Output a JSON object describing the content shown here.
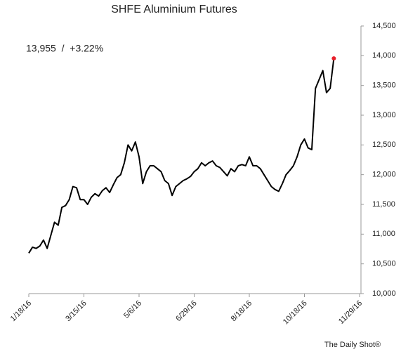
{
  "chart_data": {
    "type": "line",
    "title": "SHFE Aluminium Futures",
    "annotation": "13,955  /  +3.22%",
    "source": "The Daily Shot®",
    "categories": [
      "1/18/16",
      null,
      null,
      null,
      null,
      null,
      null,
      null,
      null,
      null,
      null,
      null,
      null,
      null,
      null,
      "3/15/16",
      null,
      null,
      null,
      null,
      null,
      null,
      null,
      null,
      null,
      null,
      null,
      null,
      null,
      null,
      "5/6/16",
      null,
      null,
      null,
      null,
      null,
      null,
      null,
      null,
      null,
      null,
      null,
      null,
      null,
      null,
      "6/29/16",
      null,
      null,
      null,
      null,
      null,
      null,
      null,
      null,
      null,
      null,
      null,
      null,
      null,
      null,
      "8/18/16",
      null,
      null,
      null,
      null,
      null,
      null,
      null,
      null,
      null,
      null,
      null,
      null,
      null,
      null,
      "10/18/16",
      null,
      null,
      null,
      null,
      null,
      null,
      null,
      null,
      null,
      null,
      null,
      null,
      null,
      null,
      "11/29/16"
    ],
    "values": [
      10680,
      10780,
      10760,
      10800,
      10900,
      10760,
      10980,
      11200,
      11150,
      11450,
      11480,
      11580,
      11800,
      11780,
      11580,
      11580,
      11500,
      11620,
      11680,
      11640,
      11730,
      11780,
      11700,
      11830,
      11950,
      12000,
      12200,
      12500,
      12400,
      12550,
      12300,
      11850,
      12050,
      12150,
      12150,
      12100,
      12050,
      11900,
      11850,
      11650,
      11800,
      11850,
      11900,
      11930,
      11970,
      12050,
      12100,
      12200,
      12150,
      12200,
      12230,
      12150,
      12120,
      12050,
      11980,
      12100,
      12050,
      12150,
      12170,
      12150,
      12300,
      12150,
      12150,
      12100,
      12000,
      11900,
      11800,
      11750,
      11720,
      11850,
      12000,
      12070,
      12150,
      12300,
      12500,
      12600,
      12450,
      12420,
      13450,
      13600,
      13750,
      13380,
      13450,
      13955,
      null,
      null,
      null,
      null,
      null,
      null,
      null
    ],
    "color": "#000000",
    "last_point_color": "#e8202a",
    "ylim": [
      10000,
      14500
    ],
    "yticks": [
      {
        "value": 10000,
        "label": "10,000"
      },
      {
        "value": 10500,
        "label": "10,500"
      },
      {
        "value": 11000,
        "label": "11,000"
      },
      {
        "value": 11500,
        "label": "11,500"
      },
      {
        "value": 12000,
        "label": "12,000"
      },
      {
        "value": 12500,
        "label": "12,500"
      },
      {
        "value": 13000,
        "label": "13,000"
      },
      {
        "value": 13500,
        "label": "13,500"
      },
      {
        "value": 14000,
        "label": "14,000"
      },
      {
        "value": 14500,
        "label": "14,500"
      }
    ],
    "y_axis_side": "right",
    "grid": false
  }
}
